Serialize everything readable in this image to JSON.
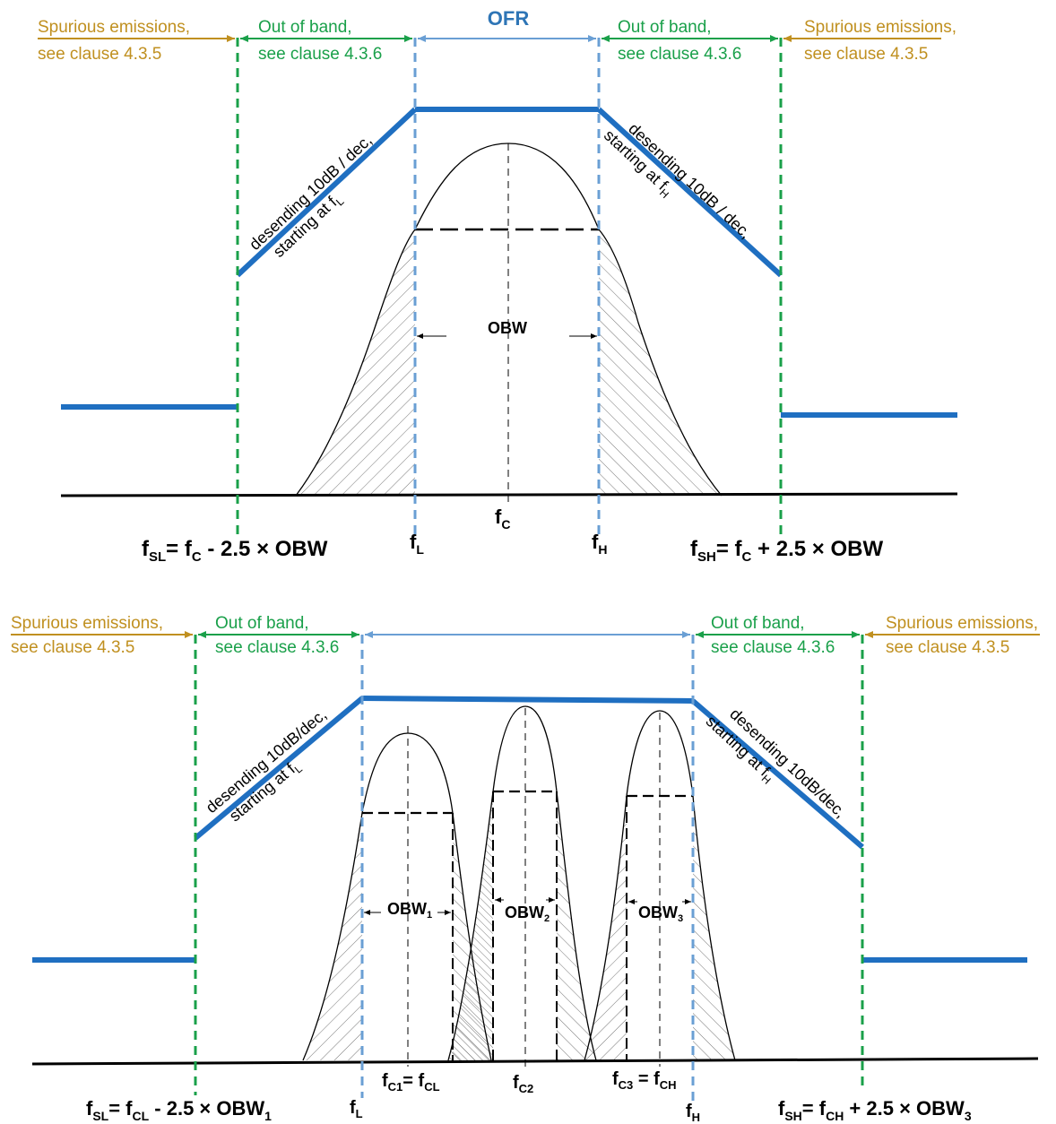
{
  "colors": {
    "spurious": "#c09020",
    "out_of_band": "#1aa04a",
    "ofr": "#2e75b6",
    "mask": "#1f6fc1",
    "axis": "#000000"
  },
  "top": {
    "spurious_left": [
      "Spurious emissions,",
      "see clause 4.3.5"
    ],
    "oob_left": [
      "Out of band,",
      "see clause 4.3.6"
    ],
    "ofr": "OFR",
    "oob_right": [
      "Out of band,",
      "see clause 4.3.6"
    ],
    "spurious_right": [
      "Spurious emissions,",
      "see clause 4.3.5"
    ],
    "slope_left": [
      "desending 10dB / dec,",
      "starting at f"
    ],
    "slope_left_sub": "L",
    "slope_right": [
      "desending 10dB / dec,",
      "starting at f"
    ],
    "slope_right_sub": "H",
    "obw": "OBW",
    "fc": {
      "main": "f",
      "sub": "C"
    },
    "fl": {
      "main": "f",
      "sub": "L"
    },
    "fh": {
      "main": "f",
      "sub": "H"
    },
    "fsl": {
      "a": "f",
      "a_sub": "SL",
      "b": "= f",
      "b_sub": "C",
      "c": " - 2.5 × OBW"
    },
    "fsh": {
      "a": "f",
      "a_sub": "SH",
      "b": "= f",
      "b_sub": "C",
      "c": " + 2.5 × OBW"
    }
  },
  "bottom": {
    "spurious_left": [
      "Spurious emissions,",
      "see clause 4.3.5"
    ],
    "oob_left": [
      "Out of band,",
      "see clause 4.3.6"
    ],
    "oob_right": [
      "Out of band,",
      "see clause  4.3.6"
    ],
    "spurious_right": [
      "Spurious emissions,",
      "see clause 4.3.5"
    ],
    "slope_left": [
      "desending 10dB/dec,",
      "starting at f"
    ],
    "slope_left_sub": "L",
    "slope_right": [
      "desending 10dB/dec,",
      "starting at f"
    ],
    "slope_right_sub": "H",
    "obw1": {
      "main": "OBW",
      "sub": "1"
    },
    "obw2": {
      "main": "OBW",
      "sub": "2"
    },
    "obw3": {
      "main": "OBW",
      "sub": "3"
    },
    "fc1": {
      "a": "f",
      "a_sub": "C1",
      "b": "= f",
      "b_sub": "CL"
    },
    "fc2": {
      "a": "f",
      "a_sub": "C2"
    },
    "fc3": {
      "a": "f",
      "a_sub": "C3",
      "b": " = f",
      "b_sub": "CH"
    },
    "fl": {
      "main": "f",
      "sub": "L"
    },
    "fh": {
      "main": "f",
      "sub": "H"
    },
    "fsl": {
      "a": "f",
      "a_sub": "SL",
      "b": "= f",
      "b_sub": "CL",
      "c": " - 2.5 × OBW",
      "c_sub": "1"
    },
    "fsh": {
      "a": "f",
      "a_sub": "SH",
      "b": "= f",
      "b_sub": "CH",
      "c": " + 2.5 × OBW",
      "c_sub": "3"
    }
  }
}
